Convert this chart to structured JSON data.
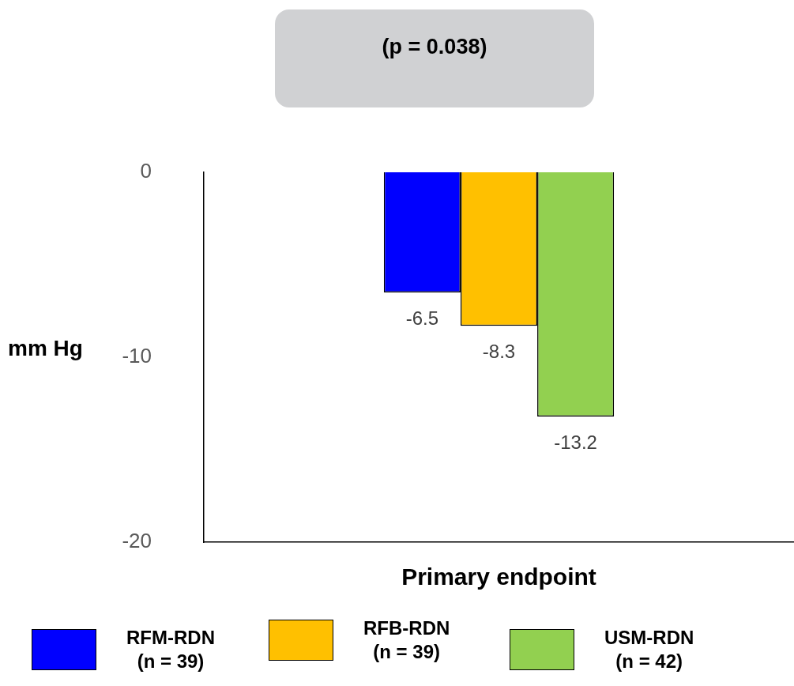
{
  "chart_data": {
    "type": "bar",
    "ylabel": "mm Hg",
    "categories": [
      "Primary endpoint"
    ],
    "series": [
      {
        "name": "RFM-RDN\n(n = 39)",
        "color": "#0000ff",
        "values": [
          -6.5
        ]
      },
      {
        "name": "RFB-RDN\n(n = 39)",
        "color": "#ffc000",
        "values": [
          -8.3
        ]
      },
      {
        "name": "USM-RDN\n(n = 42)",
        "color": "#92d050",
        "values": [
          -13.2
        ]
      }
    ],
    "ylim": [
      -20,
      0
    ],
    "yticks": [
      -20,
      -10,
      0
    ],
    "grid": false,
    "legend": "bottom",
    "data_labels": true,
    "annotations": [
      "(p = 0.038)"
    ]
  }
}
